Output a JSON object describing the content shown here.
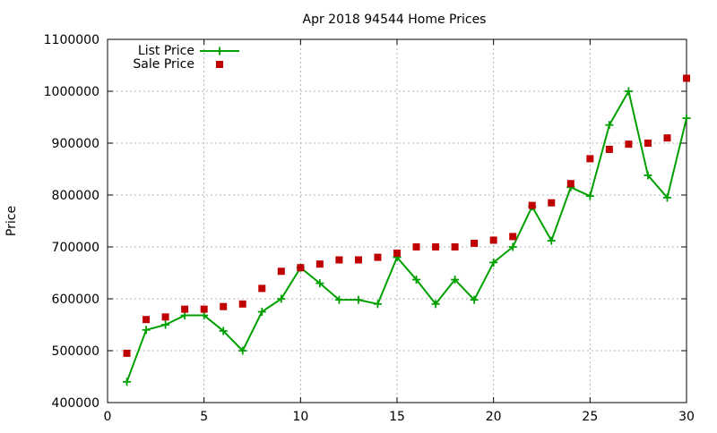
{
  "chart_data": {
    "type": "line",
    "title": "Apr 2018 94544 Home Prices",
    "xlabel": "",
    "ylabel": "Price",
    "xlim": [
      0,
      30
    ],
    "ylim": [
      400000,
      1100000
    ],
    "xticks": [
      0,
      5,
      10,
      15,
      20,
      25,
      30
    ],
    "yticks": [
      400000,
      500000,
      600000,
      700000,
      800000,
      900000,
      1000000,
      1100000
    ],
    "grid": true,
    "legend_position": "top-left",
    "series": [
      {
        "name": "List Price",
        "style": "line-with-plus-markers",
        "color": "#00a000",
        "x": [
          1,
          2,
          3,
          4,
          5,
          6,
          7,
          8,
          9,
          10,
          11,
          12,
          13,
          14,
          15,
          16,
          17,
          18,
          19,
          20,
          21,
          22,
          23,
          24,
          25,
          26,
          27,
          28,
          29,
          30
        ],
        "y": [
          440000,
          540000,
          550000,
          568000,
          568000,
          538000,
          500000,
          575000,
          600000,
          660000,
          630000,
          598000,
          598000,
          590000,
          680000,
          637000,
          590000,
          637000,
          598000,
          670000,
          700000,
          778000,
          712000,
          815000,
          798000,
          935000,
          1000000,
          838000,
          795000,
          948000
        ]
      },
      {
        "name": "Sale Price",
        "style": "square-markers",
        "color": "#c00000",
        "x": [
          1,
          2,
          3,
          4,
          5,
          6,
          7,
          8,
          9,
          10,
          11,
          12,
          13,
          14,
          15,
          16,
          17,
          18,
          19,
          20,
          21,
          22,
          23,
          24,
          25,
          26,
          27,
          28,
          29,
          30
        ],
        "y": [
          495000,
          560000,
          565000,
          580000,
          580000,
          585000,
          590000,
          620000,
          653000,
          660000,
          667000,
          675000,
          675000,
          680000,
          688000,
          700000,
          700000,
          700000,
          707000,
          713000,
          720000,
          780000,
          785000,
          822000,
          870000,
          888000,
          898000,
          900000,
          910000,
          1025000
        ]
      }
    ]
  }
}
